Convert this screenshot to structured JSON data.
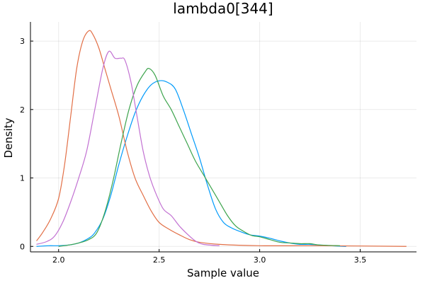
{
  "chart_data": {
    "type": "line",
    "title": "lambda0[344]",
    "xlabel": "Sample value",
    "ylabel": "Density",
    "xlim": [
      1.86,
      3.78
    ],
    "ylim": [
      -0.08,
      3.28
    ],
    "x_ticks": [
      2.0,
      2.5,
      3.0,
      3.5
    ],
    "x_tick_labels": [
      "2.0",
      "2.5",
      "3.0",
      "3.5"
    ],
    "y_ticks": [
      0,
      1,
      2,
      3
    ],
    "y_tick_labels": [
      "0",
      "1",
      "2",
      "3"
    ],
    "grid": true,
    "legend": "none",
    "series": [
      {
        "color": "#009AFA",
        "points": [
          [
            1.89,
            0.0
          ],
          [
            1.95,
            0.01
          ],
          [
            2.0,
            0.01
          ],
          [
            2.05,
            0.02
          ],
          [
            2.1,
            0.05
          ],
          [
            2.15,
            0.12
          ],
          [
            2.18,
            0.2
          ],
          [
            2.22,
            0.4
          ],
          [
            2.26,
            0.75
          ],
          [
            2.3,
            1.2
          ],
          [
            2.34,
            1.6
          ],
          [
            2.38,
            1.95
          ],
          [
            2.42,
            2.2
          ],
          [
            2.46,
            2.36
          ],
          [
            2.5,
            2.42
          ],
          [
            2.54,
            2.4
          ],
          [
            2.58,
            2.3
          ],
          [
            2.62,
            2.0
          ],
          [
            2.66,
            1.65
          ],
          [
            2.7,
            1.3
          ],
          [
            2.74,
            0.9
          ],
          [
            2.78,
            0.55
          ],
          [
            2.82,
            0.35
          ],
          [
            2.86,
            0.27
          ],
          [
            2.9,
            0.22
          ],
          [
            2.95,
            0.17
          ],
          [
            3.0,
            0.15
          ],
          [
            3.05,
            0.12
          ],
          [
            3.1,
            0.08
          ],
          [
            3.15,
            0.05
          ],
          [
            3.2,
            0.03
          ],
          [
            3.25,
            0.03
          ],
          [
            3.3,
            0.02
          ],
          [
            3.35,
            0.01
          ],
          [
            3.43,
            0.0
          ]
        ]
      },
      {
        "color": "#E26F46",
        "points": [
          [
            1.89,
            0.08
          ],
          [
            1.92,
            0.2
          ],
          [
            1.96,
            0.4
          ],
          [
            2.0,
            0.7
          ],
          [
            2.03,
            1.2
          ],
          [
            2.06,
            1.9
          ],
          [
            2.09,
            2.6
          ],
          [
            2.12,
            3.0
          ],
          [
            2.15,
            3.15
          ],
          [
            2.17,
            3.1
          ],
          [
            2.2,
            2.9
          ],
          [
            2.23,
            2.6
          ],
          [
            2.26,
            2.3
          ],
          [
            2.3,
            1.9
          ],
          [
            2.34,
            1.4
          ],
          [
            2.38,
            1.0
          ],
          [
            2.42,
            0.75
          ],
          [
            2.46,
            0.52
          ],
          [
            2.5,
            0.35
          ],
          [
            2.55,
            0.25
          ],
          [
            2.6,
            0.17
          ],
          [
            2.65,
            0.1
          ],
          [
            2.7,
            0.06
          ],
          [
            2.8,
            0.03
          ],
          [
            3.0,
            0.01
          ],
          [
            3.3,
            0.01
          ],
          [
            3.73,
            0.0
          ]
        ]
      },
      {
        "color": "#3DA44D",
        "points": [
          [
            2.0,
            0.0
          ],
          [
            2.05,
            0.02
          ],
          [
            2.1,
            0.05
          ],
          [
            2.15,
            0.1
          ],
          [
            2.19,
            0.2
          ],
          [
            2.23,
            0.5
          ],
          [
            2.27,
            0.95
          ],
          [
            2.31,
            1.5
          ],
          [
            2.35,
            2.0
          ],
          [
            2.39,
            2.35
          ],
          [
            2.43,
            2.55
          ],
          [
            2.45,
            2.6
          ],
          [
            2.48,
            2.5
          ],
          [
            2.52,
            2.2
          ],
          [
            2.56,
            2.0
          ],
          [
            2.6,
            1.75
          ],
          [
            2.64,
            1.5
          ],
          [
            2.68,
            1.25
          ],
          [
            2.72,
            1.05
          ],
          [
            2.76,
            0.85
          ],
          [
            2.8,
            0.65
          ],
          [
            2.84,
            0.45
          ],
          [
            2.88,
            0.3
          ],
          [
            2.92,
            0.22
          ],
          [
            2.96,
            0.16
          ],
          [
            3.0,
            0.14
          ],
          [
            3.05,
            0.1
          ],
          [
            3.1,
            0.06
          ],
          [
            3.15,
            0.05
          ],
          [
            3.2,
            0.04
          ],
          [
            3.25,
            0.04
          ],
          [
            3.3,
            0.02
          ],
          [
            3.4,
            0.01
          ]
        ]
      },
      {
        "color": "#C271D2",
        "points": [
          [
            1.89,
            0.03
          ],
          [
            1.94,
            0.07
          ],
          [
            1.98,
            0.15
          ],
          [
            2.02,
            0.35
          ],
          [
            2.06,
            0.65
          ],
          [
            2.1,
            1.0
          ],
          [
            2.14,
            1.4
          ],
          [
            2.18,
            2.0
          ],
          [
            2.22,
            2.6
          ],
          [
            2.25,
            2.85
          ],
          [
            2.28,
            2.75
          ],
          [
            2.31,
            2.75
          ],
          [
            2.33,
            2.72
          ],
          [
            2.36,
            2.4
          ],
          [
            2.39,
            1.9
          ],
          [
            2.42,
            1.4
          ],
          [
            2.45,
            1.05
          ],
          [
            2.48,
            0.8
          ],
          [
            2.52,
            0.55
          ],
          [
            2.56,
            0.45
          ],
          [
            2.6,
            0.3
          ],
          [
            2.64,
            0.18
          ],
          [
            2.68,
            0.08
          ],
          [
            2.72,
            0.03
          ],
          [
            2.8,
            0.01
          ]
        ]
      }
    ]
  }
}
